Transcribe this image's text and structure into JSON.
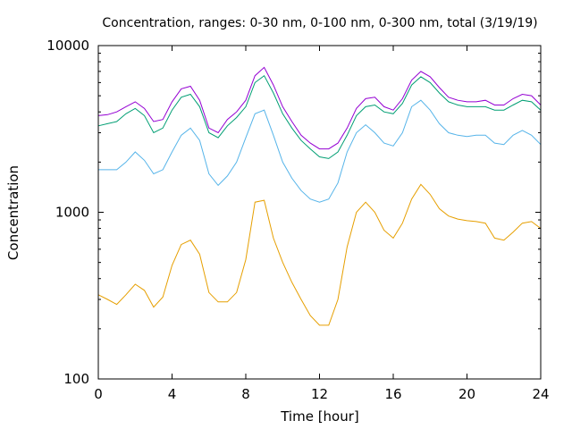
{
  "chart_data": {
    "type": "line",
    "title": "Concentration, ranges: 0-30 nm, 0-100 nm, 0-300 nm, total (3/19/19)",
    "xlabel": "Time [hour]",
    "ylabel": "Concentration",
    "xlim": [
      0,
      24
    ],
    "ylim": [
      100,
      10000
    ],
    "yscale": "log",
    "grid": false,
    "legend": "none",
    "x_ticks": [
      "0",
      "4",
      "8",
      "12",
      "16",
      "20",
      "24"
    ],
    "y_ticks": [
      "100",
      "1000",
      "10000"
    ],
    "series": [
      {
        "color": "#e69f00",
        "x": [
          0,
          0.5,
          1,
          1.5,
          2,
          2.5,
          3,
          3.5,
          4,
          4.5,
          5,
          5.5,
          6,
          6.5,
          7,
          7.5,
          8,
          8.5,
          9,
          9.5,
          10,
          10.5,
          11,
          11.5,
          12,
          12.5,
          13,
          13.5,
          14,
          14.5,
          15,
          15.5,
          16,
          16.5,
          17,
          17.5,
          18,
          18.5,
          19,
          19.5,
          20,
          20.5,
          21,
          21.5,
          22,
          22.5,
          23,
          23.5,
          24
        ],
        "y": [
          320,
          300,
          280,
          320,
          370,
          340,
          270,
          310,
          480,
          640,
          680,
          560,
          330,
          290,
          290,
          330,
          520,
          1150,
          1180,
          700,
          500,
          380,
          300,
          240,
          210,
          210,
          300,
          620,
          1000,
          1150,
          1000,
          780,
          700,
          860,
          1200,
          1470,
          1280,
          1050,
          950,
          910,
          890,
          880,
          860,
          700,
          680,
          760,
          860,
          880,
          800
        ]
      },
      {
        "color": "#56b4e9",
        "x": [
          0,
          0.5,
          1,
          1.5,
          2,
          2.5,
          3,
          3.5,
          4,
          4.5,
          5,
          5.5,
          6,
          6.5,
          7,
          7.5,
          8,
          8.5,
          9,
          9.5,
          10,
          10.5,
          11,
          11.5,
          12,
          12.5,
          13,
          13.5,
          14,
          14.5,
          15,
          15.5,
          16,
          16.5,
          17,
          17.5,
          18,
          18.5,
          19,
          19.5,
          20,
          20.5,
          21,
          21.5,
          22,
          22.5,
          23,
          23.5,
          24
        ],
        "y": [
          1800,
          1800,
          1800,
          2000,
          2300,
          2050,
          1700,
          1800,
          2300,
          2900,
          3200,
          2700,
          1700,
          1450,
          1650,
          2000,
          2800,
          3900,
          4100,
          2900,
          2000,
          1600,
          1350,
          1200,
          1150,
          1200,
          1500,
          2300,
          3000,
          3350,
          3000,
          2600,
          2500,
          3000,
          4300,
          4700,
          4100,
          3400,
          3000,
          2900,
          2850,
          2900,
          2900,
          2600,
          2550,
          2900,
          3100,
          2900,
          2550
        ]
      },
      {
        "color": "#009e73",
        "x": [
          0,
          0.5,
          1,
          1.5,
          2,
          2.5,
          3,
          3.5,
          4,
          4.5,
          5,
          5.5,
          6,
          6.5,
          7,
          7.5,
          8,
          8.5,
          9,
          9.5,
          10,
          10.5,
          11,
          11.5,
          12,
          12.5,
          13,
          13.5,
          14,
          14.5,
          15,
          15.5,
          16,
          16.5,
          17,
          17.5,
          18,
          18.5,
          19,
          19.5,
          20,
          20.5,
          21,
          21.5,
          22,
          22.5,
          23,
          23.5,
          24
        ],
        "y": [
          3300,
          3400,
          3500,
          3900,
          4200,
          3800,
          3000,
          3200,
          4100,
          4900,
          5100,
          4300,
          3000,
          2800,
          3300,
          3700,
          4300,
          6000,
          6600,
          5200,
          3900,
          3200,
          2700,
          2400,
          2150,
          2100,
          2300,
          2900,
          3800,
          4300,
          4400,
          4000,
          3900,
          4500,
          5800,
          6500,
          6000,
          5200,
          4600,
          4400,
          4300,
          4300,
          4300,
          4100,
          4100,
          4400,
          4700,
          4600,
          4100
        ]
      },
      {
        "color": "#9400d3",
        "x": [
          0,
          0.5,
          1,
          1.5,
          2,
          2.5,
          3,
          3.5,
          4,
          4.5,
          5,
          5.5,
          6,
          6.5,
          7,
          7.5,
          8,
          8.5,
          9,
          9.5,
          10,
          10.5,
          11,
          11.5,
          12,
          12.5,
          13,
          13.5,
          14,
          14.5,
          15,
          15.5,
          16,
          16.5,
          17,
          17.5,
          18,
          18.5,
          19,
          19.5,
          20,
          20.5,
          21,
          21.5,
          22,
          22.5,
          23,
          23.5,
          24
        ],
        "y": [
          3800,
          3850,
          4000,
          4300,
          4600,
          4200,
          3500,
          3600,
          4600,
          5500,
          5700,
          4700,
          3200,
          3000,
          3600,
          4000,
          4700,
          6600,
          7400,
          5800,
          4300,
          3500,
          2900,
          2600,
          2400,
          2400,
          2600,
          3200,
          4200,
          4800,
          4900,
          4300,
          4100,
          4800,
          6200,
          7000,
          6500,
          5600,
          4900,
          4700,
          4600,
          4600,
          4700,
          4400,
          4400,
          4800,
          5100,
          5000,
          4400
        ]
      }
    ]
  }
}
